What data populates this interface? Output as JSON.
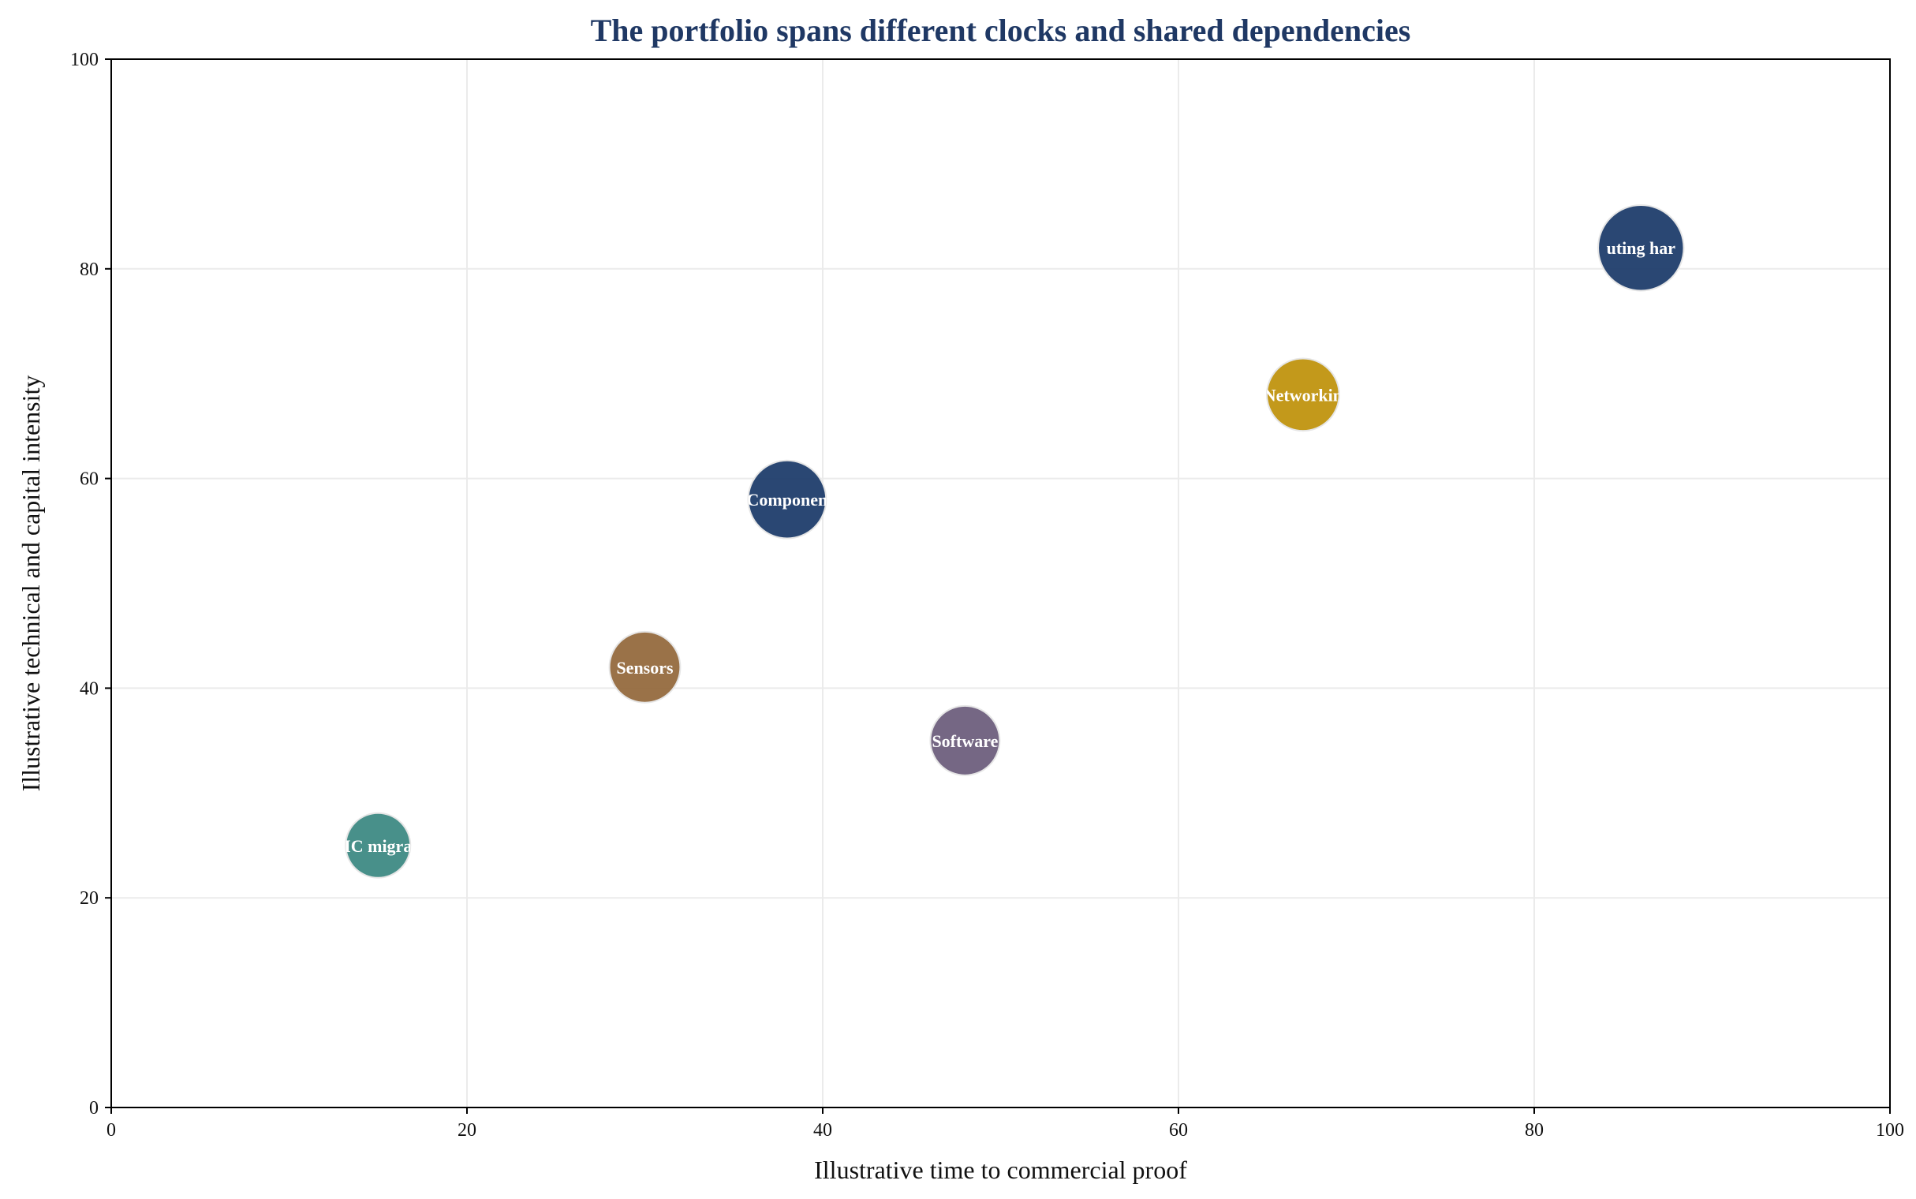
{
  "chart_data": {
    "type": "scatter",
    "title": "The portfolio spans different clocks and shared dependencies",
    "xlabel": "Illustrative time to commercial proof",
    "ylabel": "Illustrative technical and capital intensity",
    "xlim": [
      0,
      100
    ],
    "ylim": [
      0,
      100
    ],
    "xticks": [
      0,
      20,
      40,
      60,
      80,
      100
    ],
    "yticks": [
      0,
      20,
      40,
      60,
      80,
      100
    ],
    "grid": true,
    "colors": {
      "title": "#1f3864",
      "grid": "#ebebeb",
      "axis": "#000000"
    },
    "points": [
      {
        "label": "IC migra",
        "x": 15,
        "y": 25,
        "size": 1.0,
        "color": "#3e8a84"
      },
      {
        "label": "Sensors",
        "x": 30,
        "y": 42,
        "size": 1.2,
        "color": "#956a3e"
      },
      {
        "label": "Componen",
        "x": 38,
        "y": 58,
        "size": 1.45,
        "color": "#1f3d6c"
      },
      {
        "label": "Software",
        "x": 48,
        "y": 35,
        "size": 1.15,
        "color": "#6e5f7d"
      },
      {
        "label": "Networkin",
        "x": 67,
        "y": 68,
        "size": 1.25,
        "color": "#c0940f"
      },
      {
        "label": "uting har",
        "x": 86,
        "y": 82,
        "size": 1.75,
        "color": "#1f3d6c"
      }
    ]
  }
}
